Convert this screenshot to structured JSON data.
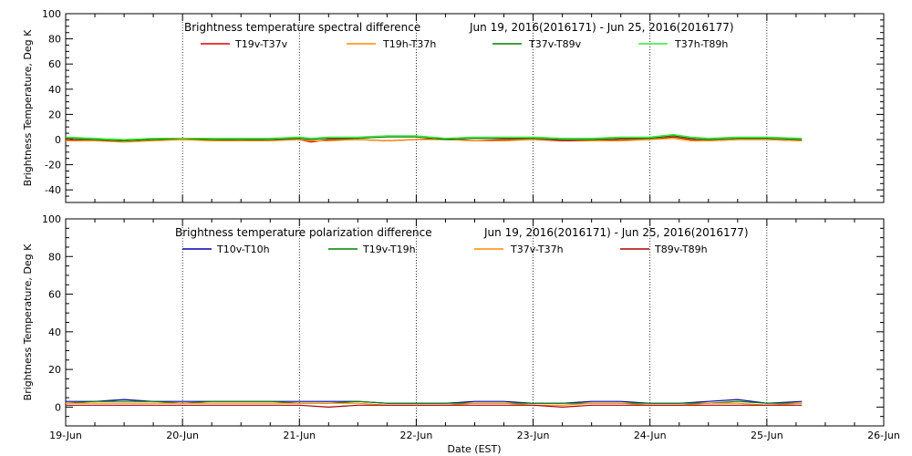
{
  "chart_data": [
    {
      "type": "line",
      "title": "Brightness temperature spectral difference",
      "date_range": "Jun 19, 2016(2016171) - Jun 25, 2016(2016177)",
      "ylabel": "Brightness Temperature, Deg K",
      "xlabel": "",
      "ylim": [
        -50,
        100
      ],
      "yticks": [
        "-40",
        "-20",
        "0",
        "20",
        "40",
        "60",
        "80",
        "100"
      ],
      "grid": "vertical dotted lines at each day",
      "legend_position": "top",
      "x_days": [
        0.0,
        0.25,
        0.5,
        0.75,
        1.0,
        1.25,
        1.5,
        1.75,
        2.0,
        2.1,
        2.25,
        2.5,
        2.75,
        3.0,
        3.25,
        3.5,
        3.75,
        4.0,
        4.25,
        4.5,
        4.75,
        5.0,
        5.2,
        5.35,
        5.5,
        5.75,
        6.0,
        6.3
      ],
      "series": [
        {
          "name": "T19v-T37v",
          "color": "#e00000",
          "values": [
            0,
            -1,
            -1,
            0,
            0,
            0,
            -1,
            0,
            0,
            -2,
            0,
            0,
            -1,
            0,
            1,
            -1,
            0,
            0,
            -1,
            -1,
            0,
            0,
            2,
            0,
            -1,
            0,
            0,
            -1
          ]
        },
        {
          "name": "T19h-T37h",
          "color": "#ff8c00",
          "values": [
            -1,
            -1,
            -2,
            -1,
            0,
            -1,
            -1,
            -1,
            0,
            -1,
            -1,
            0,
            -1,
            0,
            0,
            -1,
            -1,
            0,
            0,
            -1,
            -1,
            0,
            1,
            -1,
            -1,
            0,
            0,
            -1
          ]
        },
        {
          "name": "T37v-T89v",
          "color": "#008000",
          "values": [
            1,
            0,
            -1,
            0,
            1,
            0,
            0,
            0,
            1,
            0,
            1,
            1,
            2,
            2,
            0,
            1,
            1,
            1,
            0,
            0,
            1,
            1,
            3,
            1,
            0,
            1,
            1,
            0
          ]
        },
        {
          "name": "T37h-T89h",
          "color": "#33ee33",
          "values": [
            2,
            1,
            0,
            1,
            1,
            1,
            1,
            1,
            2,
            1,
            2,
            2,
            3,
            3,
            1,
            2,
            2,
            2,
            1,
            1,
            2,
            2,
            4,
            2,
            1,
            2,
            2,
            1
          ]
        }
      ]
    },
    {
      "type": "line",
      "title": "Brightness temperature polarization difference",
      "date_range": "Jun 19, 2016(2016171) - Jun 25, 2016(2016177)",
      "ylabel": "Brightness Temperature, Deg K",
      "xlabel": "Date (EST)",
      "ylim": [
        -10,
        100
      ],
      "yticks": [
        "0",
        "20",
        "40",
        "60",
        "80",
        "100"
      ],
      "xticks": [
        "19-Jun",
        "20-Jun",
        "21-Jun",
        "22-Jun",
        "23-Jun",
        "24-Jun",
        "25-Jun",
        "26-Jun"
      ],
      "grid": "vertical dotted lines at each day",
      "legend_position": "top",
      "x_days": [
        0.0,
        0.25,
        0.5,
        0.75,
        1.0,
        1.25,
        1.5,
        1.75,
        2.0,
        2.25,
        2.5,
        2.75,
        3.0,
        3.25,
        3.5,
        3.75,
        4.0,
        4.25,
        4.5,
        4.75,
        5.0,
        5.25,
        5.5,
        5.75,
        6.0,
        6.3
      ],
      "series": [
        {
          "name": "T10v-T10h",
          "color": "#0000aa",
          "values": [
            3,
            3,
            4,
            3,
            3,
            3,
            3,
            3,
            3,
            3,
            3,
            2,
            2,
            2,
            3,
            3,
            2,
            2,
            3,
            3,
            2,
            2,
            3,
            4,
            2,
            3
          ]
        },
        {
          "name": "T19v-T19h",
          "color": "#008000",
          "values": [
            2,
            3,
            3,
            3,
            2,
            3,
            3,
            3,
            2,
            2,
            3,
            2,
            2,
            2,
            2,
            2,
            2,
            2,
            2,
            2,
            2,
            2,
            2,
            3,
            2,
            2
          ]
        },
        {
          "name": "T37v-T37h",
          "color": "#ff8c00",
          "values": [
            2,
            2,
            2,
            2,
            2,
            2,
            2,
            2,
            2,
            2,
            2,
            1,
            1,
            1,
            2,
            2,
            1,
            1,
            2,
            2,
            1,
            1,
            2,
            2,
            1,
            2
          ]
        },
        {
          "name": "T89v-T89h",
          "color": "#aa0000",
          "values": [
            1,
            1,
            1,
            1,
            1,
            1,
            1,
            1,
            1,
            0,
            1,
            1,
            1,
            1,
            1,
            1,
            1,
            0,
            1,
            1,
            1,
            1,
            1,
            1,
            1,
            1
          ]
        }
      ]
    }
  ]
}
